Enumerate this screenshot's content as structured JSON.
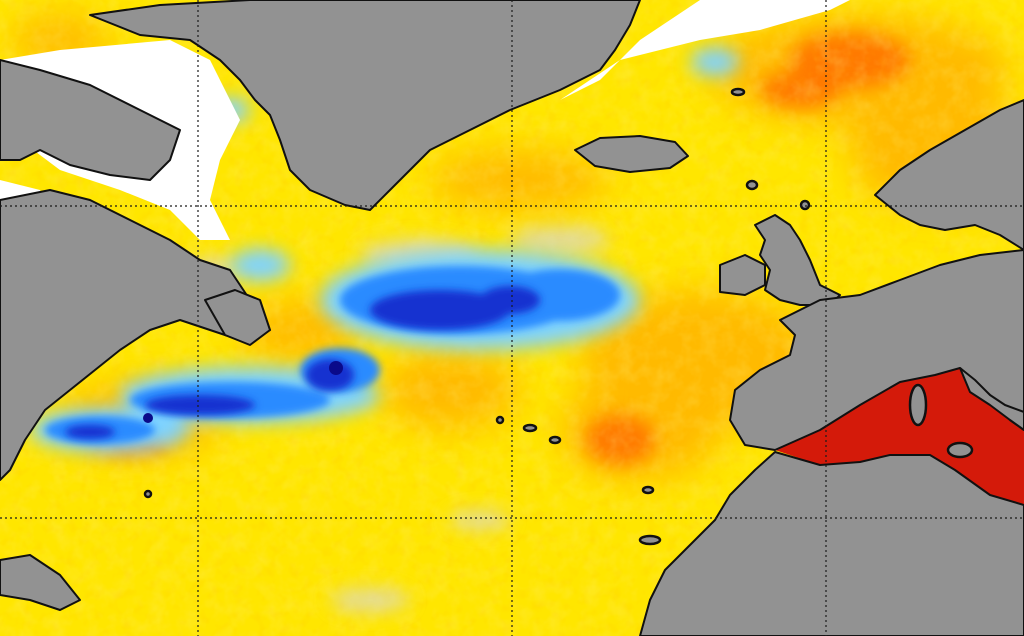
{
  "map": {
    "type": "sea-surface-anomaly-map",
    "region": "North Atlantic",
    "colors": {
      "land": "#929292",
      "coastline": "#111111",
      "sea_ice": "#ffffff",
      "near_zero": "#d8d8d8",
      "warm_light": "#ffe600",
      "warm_mid": "#ffb300",
      "warm_strong": "#ff6a00",
      "warm_extreme": "#d41a0a",
      "cool_light": "#7fd3ff",
      "cool_mid": "#2a8bff",
      "cool_strong": "#1230d0",
      "cool_extreme": "#0a0a8a"
    },
    "graticule": {
      "visible": true,
      "style": "dotted"
    },
    "legend": "none"
  }
}
